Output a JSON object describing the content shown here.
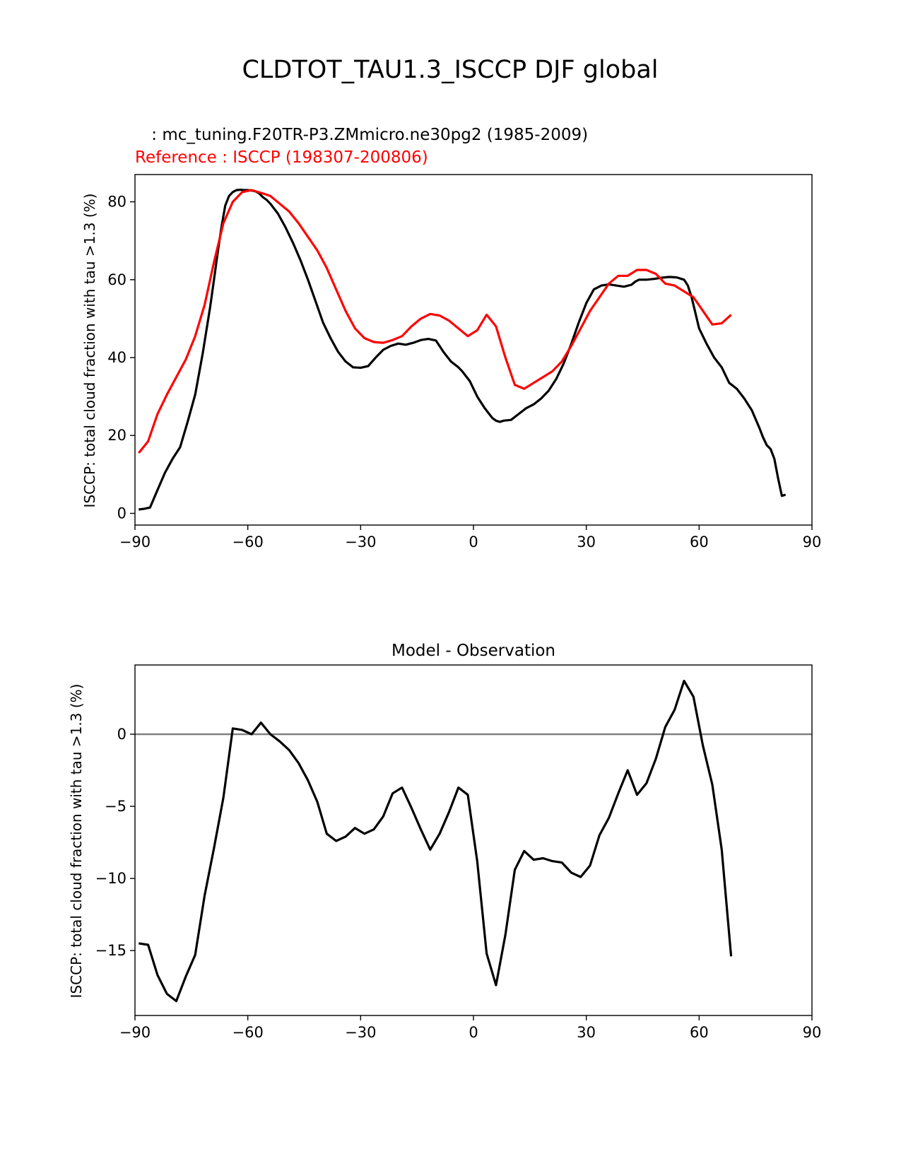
{
  "figure": {
    "suptitle": "CLDTOT_TAU1.3_ISCCP DJF global",
    "colors": {
      "test": "#000000",
      "reference": "#ff0000",
      "zero_line": "#808080"
    }
  },
  "chart_data": [
    {
      "type": "line",
      "test_label": " : mc_tuning.F20TR-P3.ZMmicro.ne30pg2 (1985-2009)",
      "reference_label": "Reference : ISCCP (198307-200806)",
      "ylabel": "ISCCP: total cloud fraction with tau >1.3 (%)",
      "xlabel": "",
      "xlim": [
        -90,
        90
      ],
      "ylim": [
        -3,
        87
      ],
      "xticks": [
        -90,
        -60,
        -30,
        0,
        30,
        60,
        90
      ],
      "xtick_labels": [
        "−90",
        "−60",
        "−30",
        "0",
        "30",
        "60",
        "90"
      ],
      "yticks": [
        0,
        20,
        40,
        60,
        80
      ],
      "ytick_labels": [
        "0",
        "20",
        "40",
        "60",
        "80"
      ],
      "series": [
        {
          "color": "#000000",
          "x": [
            -89,
            -87.5,
            -86,
            -84,
            -82,
            -80,
            -78,
            -76,
            -74,
            -72,
            -70,
            -69,
            -68,
            -67,
            -66,
            -65,
            -64,
            -63,
            -62,
            -61,
            -60,
            -59,
            -58,
            -57,
            -56,
            -55,
            -54,
            -52,
            -50,
            -48,
            -46,
            -44,
            -42,
            -40,
            -38,
            -36,
            -34,
            -32,
            -30,
            -28,
            -26,
            -24,
            -22,
            -20,
            -18,
            -16,
            -14,
            -12,
            -10,
            -8,
            -6,
            -4,
            -3,
            -1,
            1,
            3,
            5,
            6,
            7,
            8,
            10,
            12,
            14,
            16,
            18,
            20,
            22,
            24,
            26,
            28,
            30,
            32,
            34,
            36,
            38,
            40,
            42,
            43,
            44,
            46,
            48,
            50,
            52,
            54,
            56,
            57,
            58,
            59,
            60,
            62,
            64,
            66,
            68,
            70,
            72,
            74,
            76,
            77,
            78,
            79,
            80,
            81,
            82,
            83
          ],
          "values": [
            1.0,
            1.2,
            1.5,
            6.0,
            10.5,
            14.0,
            17.0,
            23.5,
            30.5,
            41.0,
            53.0,
            60.0,
            67.0,
            73.5,
            79.0,
            81.5,
            82.5,
            83.0,
            83.1,
            83.0,
            83.0,
            82.9,
            82.7,
            82.2,
            81.2,
            80.5,
            79.5,
            77.0,
            73.5,
            69.5,
            65.0,
            60.0,
            54.5,
            49.0,
            45.0,
            41.5,
            39.0,
            37.5,
            37.4,
            37.8,
            40.0,
            42.0,
            43.0,
            43.6,
            43.3,
            43.8,
            44.5,
            44.8,
            44.4,
            41.5,
            39.0,
            37.5,
            36.5,
            34.0,
            30.0,
            27.0,
            24.5,
            23.8,
            23.5,
            23.8,
            24.0,
            25.5,
            27.0,
            28.0,
            29.5,
            31.5,
            34.5,
            38.5,
            43.5,
            49.0,
            54.0,
            57.5,
            58.5,
            58.8,
            58.5,
            58.2,
            58.7,
            59.5,
            60.0,
            60.0,
            60.2,
            60.5,
            60.7,
            60.6,
            60.0,
            58.5,
            55.5,
            51.5,
            47.5,
            43.5,
            40.0,
            37.5,
            33.5,
            32.0,
            29.5,
            26.5,
            22.0,
            19.5,
            17.5,
            16.5,
            14.0,
            9.0,
            4.5,
            4.8
          ]
        },
        {
          "color": "#ff0000",
          "x": [
            -89,
            -86.5,
            -84,
            -81.5,
            -79,
            -76.5,
            -74,
            -71.5,
            -69,
            -66.5,
            -64,
            -61.5,
            -59,
            -56.5,
            -54,
            -51.5,
            -49,
            -46.5,
            -44,
            -41.5,
            -39,
            -36.5,
            -34,
            -31.5,
            -29,
            -26.5,
            -24,
            -21.5,
            -19,
            -16.5,
            -14,
            -11.5,
            -9,
            -6.5,
            -4,
            -1.5,
            1,
            3.5,
            6,
            8.5,
            11,
            13.5,
            16,
            18.5,
            21,
            23.5,
            26,
            28.5,
            31,
            33.5,
            36,
            38.5,
            41,
            43.5,
            46,
            48.5,
            51,
            53.5,
            56,
            58.5,
            61,
            63.5,
            66,
            68.5
          ],
          "values": [
            15.5,
            18.5,
            25.5,
            30.5,
            35.0,
            39.5,
            45.5,
            53.5,
            64.5,
            74.5,
            80.0,
            82.5,
            83.0,
            82.3,
            81.5,
            79.5,
            77.5,
            74.5,
            71.0,
            67.5,
            63.0,
            57.5,
            52.0,
            47.5,
            45.0,
            44.0,
            43.8,
            44.5,
            45.5,
            48.0,
            50.0,
            51.2,
            50.8,
            49.5,
            47.5,
            45.5,
            47.0,
            51.0,
            48.0,
            40.0,
            33.0,
            32.0,
            33.5,
            35.0,
            36.5,
            39.0,
            43.0,
            47.5,
            52.0,
            55.5,
            59.0,
            61.0,
            61.0,
            62.5,
            62.5,
            61.5,
            59.0,
            58.5,
            57.0,
            55.5,
            52.0,
            48.5,
            48.8,
            51.0
          ]
        }
      ]
    },
    {
      "type": "line",
      "title": "Model - Observation",
      "ylabel": "ISCCP: total cloud fraction with tau >1.3 (%)",
      "xlabel": "",
      "xlim": [
        -90,
        90
      ],
      "ylim": [
        -19.5,
        4.8
      ],
      "xticks": [
        -90,
        -60,
        -30,
        0,
        30,
        60,
        90
      ],
      "xtick_labels": [
        "−90",
        "−60",
        "−30",
        "0",
        "30",
        "60",
        "90"
      ],
      "yticks": [
        -15,
        -10,
        -5,
        0
      ],
      "ytick_labels": [
        "−15",
        "−10",
        "−5",
        "0"
      ],
      "zero_line": true,
      "series": [
        {
          "color": "#000000",
          "x": [
            -89,
            -86.5,
            -84,
            -81.5,
            -79,
            -76.5,
            -74,
            -71.5,
            -69,
            -66.5,
            -64,
            -61.5,
            -59,
            -56.5,
            -54,
            -51.5,
            -49,
            -46.5,
            -44,
            -41.5,
            -39,
            -36.5,
            -34,
            -31.5,
            -29,
            -26.5,
            -24,
            -21.5,
            -19,
            -16.5,
            -14,
            -11.5,
            -9,
            -6.5,
            -4,
            -1.5,
            1,
            3.5,
            6,
            8.5,
            11,
            13.5,
            16,
            18.5,
            21,
            23.5,
            26,
            28.5,
            31,
            33.5,
            36,
            38.5,
            41,
            43.5,
            46,
            48.5,
            51,
            53.5,
            56,
            58.5,
            61,
            63.5,
            66,
            68.5
          ],
          "values": [
            -14.5,
            -14.6,
            -16.7,
            -18.0,
            -18.5,
            -16.8,
            -15.3,
            -11.2,
            -7.9,
            -4.4,
            0.4,
            0.3,
            0.0,
            0.8,
            0.0,
            -0.5,
            -1.1,
            -2.0,
            -3.2,
            -4.7,
            -6.9,
            -7.4,
            -7.1,
            -6.5,
            -6.9,
            -6.6,
            -5.7,
            -4.1,
            -3.7,
            -5.1,
            -6.6,
            -8.0,
            -6.9,
            -5.4,
            -3.7,
            -4.2,
            -8.8,
            -15.2,
            -17.4,
            -13.9,
            -9.4,
            -8.1,
            -8.7,
            -8.6,
            -8.8,
            -8.9,
            -9.6,
            -9.9,
            -9.1,
            -7.0,
            -5.8,
            -4.1,
            -2.5,
            -4.2,
            -3.4,
            -1.7,
            0.5,
            1.7,
            3.7,
            2.6,
            -0.8,
            -3.5,
            -8.0,
            -15.4
          ]
        }
      ]
    }
  ]
}
